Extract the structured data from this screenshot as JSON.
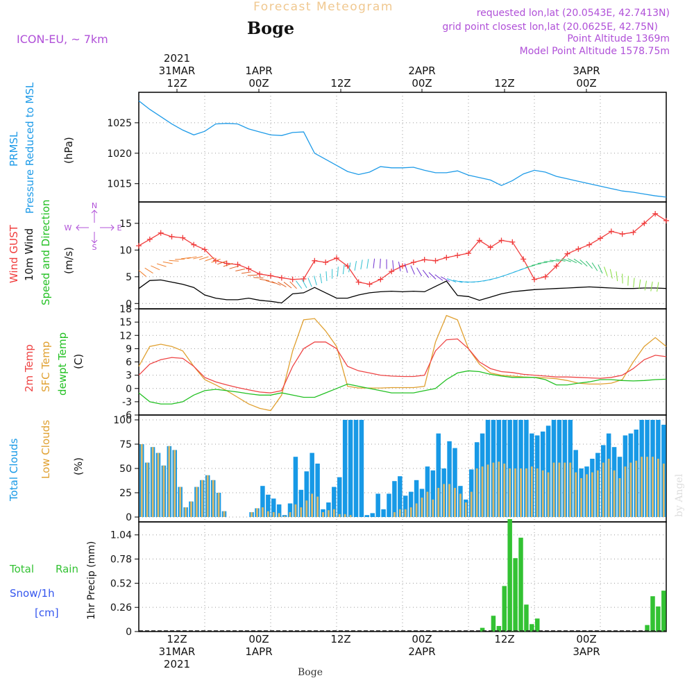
{
  "header": {
    "title": "Forecast Meteogram",
    "station": "Boge",
    "model": "ICON-EU, ~ 7km",
    "requested": "requested lon,lat (20.0543E, 42.7413N)",
    "gridpoint": "grid point closest lon,lat (20.0625E, 42.75N)",
    "point_alt": "Point Altitude 1369m",
    "model_alt": "Model Point Altitude 1578.75m",
    "footer_station": "Boge",
    "watermark": "by Angel"
  },
  "time_axis": {
    "top_labels": [
      {
        "lines": [
          "2021",
          "31MAR",
          "12Z"
        ]
      },
      {
        "lines": [
          "1APR",
          "00Z"
        ]
      },
      {
        "lines": [
          "12Z"
        ]
      },
      {
        "lines": [
          "2APR",
          "00Z"
        ]
      },
      {
        "lines": [
          "12Z"
        ]
      },
      {
        "lines": [
          "3APR",
          "00Z"
        ]
      }
    ],
    "bottom_labels": [
      {
        "lines": [
          "12Z",
          "31MAR",
          "2021"
        ]
      },
      {
        "lines": [
          "00Z",
          "1APR"
        ]
      },
      {
        "lines": [
          "12Z"
        ]
      },
      {
        "lines": [
          "00Z",
          "2APR"
        ]
      },
      {
        "lines": [
          "12Z"
        ]
      },
      {
        "lines": [
          "00Z",
          "3APR"
        ]
      }
    ]
  },
  "panel_labels": {
    "prmsl": [
      "PRMSL",
      "Pressure Reduced to MSL",
      "(hPa)"
    ],
    "wind": [
      "Wind GUST",
      "10m Wind",
      "Speed and Direction",
      "(m/s)"
    ],
    "compass": [
      "N",
      "W",
      "E",
      "S"
    ],
    "temp": [
      "2m Temp",
      "SFC Temp",
      "dewpt Temp",
      "(C)"
    ],
    "clouds": [
      "Total Clouds",
      "Low Clouds",
      "(%)"
    ],
    "precip": [
      "Total",
      "Rain",
      "Snow/1h",
      "[cm]",
      "1hr Precip (mm)"
    ]
  },
  "colors": {
    "pressure": "#1e9be8",
    "gust": "#f03c3c",
    "wind": "#000000",
    "temp2m": "#ee4444",
    "sfc": "#e0a030",
    "dewpt": "#22c022",
    "total_clouds": "#1799e6",
    "low_clouds": "#d9b86a",
    "rain": "#33c233",
    "snow": "#3355ee",
    "purple": "#b050d8",
    "title_orange": "#f0c890"
  },
  "chart_data": [
    {
      "type": "line",
      "ylabel": "(hPa)",
      "ylim": [
        1012,
        1030
      ],
      "yticks": [
        1015,
        1020,
        1025
      ],
      "x_hours": [
        0,
        4,
        8,
        12,
        16,
        20,
        24,
        28,
        32,
        36,
        40,
        44,
        48,
        52,
        56,
        60,
        64,
        68,
        72,
        76,
        80,
        84,
        88,
        92,
        96,
        100,
        104,
        108,
        112,
        116,
        120,
        124,
        128,
        132,
        136,
        140,
        144,
        148,
        152,
        156,
        160,
        164,
        168,
        172,
        176,
        180,
        184,
        188,
        192
      ],
      "series": [
        {
          "name": "PRMSL",
          "values": [
            1028.6,
            1027.2,
            1026.0,
            1024.8,
            1023.8,
            1023.0,
            1023.6,
            1024.8,
            1024.9,
            1024.8,
            1024.0,
            1023.5,
            1023.0,
            1022.9,
            1023.4,
            1023.5,
            1020.0,
            1019.0,
            1018.0,
            1017.0,
            1016.5,
            1016.9,
            1017.8,
            1017.6,
            1017.6,
            1017.7,
            1017.2,
            1016.8,
            1016.8,
            1017.1,
            1016.4,
            1016.0,
            1015.6,
            1014.7,
            1015.5,
            1016.6,
            1017.2,
            1016.9,
            1016.2,
            1015.8,
            1015.4,
            1015.0,
            1014.6,
            1014.2,
            1013.8,
            1013.6,
            1013.3,
            1013.0,
            1012.8
          ]
        }
      ]
    },
    {
      "type": "line",
      "ylabel": "(m/s)",
      "ylim": [
        -1,
        19
      ],
      "yticks": [
        0,
        5,
        10,
        15
      ],
      "x_hours": [
        0,
        4,
        8,
        12,
        16,
        20,
        24,
        28,
        32,
        36,
        40,
        44,
        48,
        52,
        56,
        60,
        64,
        68,
        72,
        76,
        80,
        84,
        88,
        92,
        96,
        100,
        104,
        108,
        112,
        116,
        120,
        124,
        128,
        132,
        136,
        140,
        144,
        148,
        152,
        156,
        160,
        164,
        168,
        172,
        176,
        180,
        184,
        188,
        192
      ],
      "series": [
        {
          "name": "Wind GUST",
          "values": [
            10.8,
            12.0,
            13.2,
            12.5,
            12.3,
            11.0,
            10.1,
            8.0,
            7.5,
            7.3,
            6.5,
            5.5,
            5.2,
            4.8,
            4.5,
            4.6,
            8.0,
            7.7,
            8.5,
            7.0,
            4.0,
            3.6,
            4.5,
            6.0,
            7.0,
            7.7,
            8.2,
            8.0,
            8.6,
            9.0,
            9.4,
            11.8,
            10.5,
            11.8,
            11.5,
            8.3,
            4.5,
            5.0,
            7.0,
            9.3,
            10.2,
            11.0,
            12.2,
            13.5,
            13.0,
            13.3,
            15.0,
            16.8,
            15.5
          ]
        },
        {
          "name": "10m Wind",
          "values": [
            2.8,
            4.3,
            4.4,
            4.0,
            3.6,
            3.0,
            1.6,
            1.0,
            0.7,
            0.7,
            1.0,
            0.6,
            0.4,
            0.1,
            1.8,
            2.0,
            3.0,
            2.0,
            1.0,
            1.0,
            1.6,
            2.0,
            2.2,
            2.3,
            2.2,
            2.3,
            2.2,
            3.2,
            4.2,
            1.5,
            1.3,
            0.6,
            1.2,
            1.8,
            2.2,
            2.4,
            2.6,
            2.7,
            2.8,
            2.9,
            3.0,
            3.1,
            3.0,
            2.9,
            2.8,
            2.8,
            2.9,
            2.9,
            2.8
          ]
        }
      ]
    },
    {
      "type": "line",
      "ylabel": "(C)",
      "ylim": [
        -6,
        18
      ],
      "yticks": [
        -6,
        -3,
        0,
        3,
        6,
        9,
        12,
        15,
        18
      ],
      "x_hours": [
        0,
        4,
        8,
        12,
        16,
        20,
        24,
        28,
        32,
        36,
        40,
        44,
        48,
        52,
        56,
        60,
        64,
        68,
        72,
        76,
        80,
        84,
        88,
        92,
        96,
        100,
        104,
        108,
        112,
        116,
        120,
        124,
        128,
        132,
        136,
        140,
        144,
        148,
        152,
        156,
        160,
        164,
        168,
        172,
        176,
        180,
        184,
        188,
        192
      ],
      "series": [
        {
          "name": "2m Temp",
          "values": [
            3.0,
            5.5,
            6.5,
            7.0,
            6.8,
            5.0,
            2.5,
            1.5,
            0.8,
            0.2,
            -0.3,
            -0.8,
            -1.0,
            -0.5,
            5.0,
            9.0,
            10.5,
            10.5,
            9.0,
            5.0,
            4.0,
            3.5,
            3.0,
            2.8,
            2.7,
            2.7,
            3.0,
            8.5,
            11.0,
            11.2,
            9.0,
            6.0,
            4.5,
            3.8,
            3.6,
            3.2,
            3.0,
            2.8,
            2.6,
            2.6,
            2.5,
            2.4,
            2.3,
            2.5,
            3.0,
            4.5,
            6.5,
            7.5,
            7.2
          ]
        },
        {
          "name": "SFC Temp",
          "values": [
            5.0,
            9.5,
            10.0,
            9.5,
            8.5,
            5.0,
            2.0,
            0.8,
            -0.5,
            -2.0,
            -3.5,
            -4.5,
            -5.0,
            -1.5,
            8.5,
            15.5,
            15.8,
            13.0,
            9.5,
            0.5,
            0.1,
            0.1,
            0.1,
            0.2,
            0.2,
            0.2,
            0.5,
            10.5,
            16.5,
            15.5,
            9.0,
            5.5,
            3.5,
            3.0,
            2.8,
            2.6,
            2.5,
            2.4,
            2.2,
            1.8,
            1.2,
            1.0,
            1.0,
            1.2,
            2.0,
            6.0,
            9.5,
            11.5,
            9.5
          ]
        },
        {
          "name": "dewpt Temp",
          "values": [
            -1.0,
            -3.0,
            -3.5,
            -3.5,
            -3.0,
            -1.5,
            -0.5,
            -0.2,
            -0.5,
            -0.8,
            -1.2,
            -1.5,
            -1.5,
            -1.0,
            -1.5,
            -2.0,
            -2.0,
            -1.0,
            0.0,
            1.0,
            0.5,
            0.0,
            -0.5,
            -1.0,
            -1.0,
            -1.0,
            -0.5,
            0.0,
            2.0,
            3.5,
            4.0,
            3.8,
            3.2,
            2.8,
            2.5,
            2.5,
            2.5,
            2.0,
            0.8,
            0.8,
            1.2,
            1.5,
            2.0,
            2.0,
            1.8,
            1.7,
            1.8,
            2.0,
            2.1
          ]
        }
      ]
    },
    {
      "type": "bar",
      "ylabel": "(%)",
      "ylim": [
        -5,
        105
      ],
      "yticks": [
        0,
        25,
        50,
        75,
        100
      ],
      "x_hours": [
        0,
        2,
        4,
        6,
        8,
        10,
        12,
        14,
        16,
        18,
        20,
        22,
        24,
        26,
        28,
        30,
        32,
        34,
        36,
        38,
        40,
        42,
        44,
        46,
        48,
        50,
        52,
        54,
        56,
        58,
        60,
        62,
        64,
        66,
        68,
        70,
        72,
        74,
        76,
        78,
        80,
        82,
        84,
        86,
        88,
        90,
        92,
        94,
        96,
        98,
        100,
        102,
        104,
        106,
        108,
        110,
        112,
        114,
        116,
        118,
        120,
        122,
        124,
        126,
        128,
        130,
        132,
        134,
        136,
        138,
        140,
        142,
        144,
        146,
        148,
        150,
        152,
        154,
        156,
        158,
        160,
        162,
        164,
        166,
        168,
        170,
        172,
        174,
        176,
        178,
        180,
        182,
        184,
        186,
        188,
        190
      ],
      "series": [
        {
          "name": "Total Clouds",
          "values": [
            75,
            56,
            72,
            66,
            53,
            73,
            69,
            31,
            10,
            16,
            31,
            38,
            43,
            38,
            25,
            6,
            0,
            0,
            0,
            0,
            5,
            9,
            32,
            23,
            19,
            13,
            2,
            14,
            62,
            28,
            47,
            66,
            55,
            8,
            15,
            31,
            41,
            100,
            100,
            100,
            100,
            2,
            4,
            24,
            8,
            24,
            37,
            42,
            22,
            26,
            38,
            29,
            52,
            48,
            86,
            50,
            78,
            71,
            32,
            18,
            49,
            77,
            86,
            100,
            100,
            100,
            100,
            100,
            100,
            100,
            100,
            86,
            84,
            88,
            94,
            100,
            100,
            100,
            100,
            69,
            50,
            52,
            60,
            66,
            74,
            86,
            72,
            62,
            84,
            86,
            90,
            100,
            100,
            100,
            100,
            95
          ]
        },
        {
          "name": "Low Clouds",
          "values": [
            75,
            56,
            72,
            66,
            53,
            73,
            69,
            31,
            10,
            16,
            31,
            38,
            43,
            38,
            25,
            6,
            0,
            0,
            0,
            0,
            5,
            9,
            10,
            6,
            5,
            4,
            1,
            5,
            13,
            10,
            17,
            24,
            21,
            5,
            7,
            8,
            3,
            3,
            2,
            0,
            0,
            0,
            0,
            0,
            0,
            0,
            5,
            8,
            8,
            10,
            14,
            20,
            26,
            18,
            30,
            34,
            34,
            30,
            24,
            15,
            26,
            50,
            52,
            54,
            56,
            57,
            55,
            50,
            50,
            50,
            50,
            52,
            50,
            48,
            46,
            56,
            56,
            56,
            56,
            46,
            40,
            44,
            46,
            48,
            56,
            60,
            48,
            40,
            52,
            56,
            58,
            62,
            62,
            62,
            60,
            55
          ]
        }
      ]
    },
    {
      "type": "bar",
      "ylabel": "1hr Precip (mm)",
      "ylim": [
        0,
        1.18
      ],
      "yticks": [
        0,
        0.26,
        0.52,
        0.78,
        1.04
      ],
      "x_hours": [
        124,
        128,
        130,
        132,
        134,
        136,
        138,
        140,
        142,
        144,
        146,
        148,
        150,
        184,
        186,
        188,
        190
      ],
      "series": [
        {
          "name": "Total Rain",
          "values": [
            0.04,
            0.17,
            0.06,
            0.49,
            1.21,
            0.79,
            1.01,
            0.29,
            0.08,
            0.14,
            0.0,
            0.0,
            0.0,
            0.07,
            0.38,
            0.27,
            0.44
          ]
        }
      ]
    }
  ]
}
